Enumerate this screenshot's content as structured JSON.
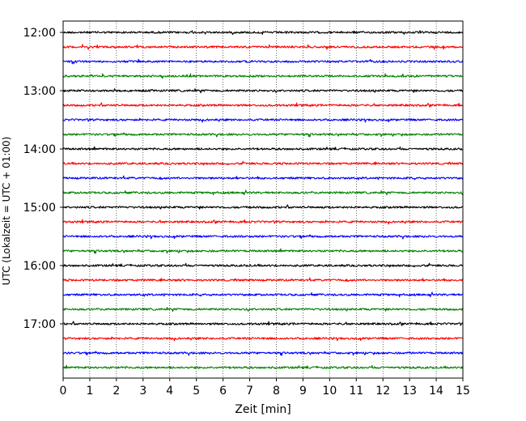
{
  "chart_data": {
    "type": "line",
    "title": "",
    "xlabel": "Zeit  [min]",
    "ylabel": "UTC (Lokalzeit = UTC + 01:00)",
    "xlim": [
      0,
      15
    ],
    "x_ticks": [
      "0",
      "1",
      "2",
      "3",
      "4",
      "5",
      "6",
      "7",
      "8",
      "9",
      "10",
      "11",
      "12",
      "13",
      "14",
      "15"
    ],
    "y_tick_labels": [
      "12:00",
      "13:00",
      "14:00",
      "15:00",
      "16:00",
      "17:00"
    ],
    "grid": "vertical dotted lines at each minute",
    "trace_interval_minutes": 15,
    "trace_start": "12:00",
    "trace_count": 24,
    "trace_color_cycle": [
      "#000000",
      "#ff0000",
      "#0000ff",
      "#008000"
    ],
    "series": [
      {
        "start": "12:00",
        "color": "#000000"
      },
      {
        "start": "12:15",
        "color": "#ff0000"
      },
      {
        "start": "12:30",
        "color": "#0000ff"
      },
      {
        "start": "12:45",
        "color": "#008000"
      },
      {
        "start": "13:00",
        "color": "#000000"
      },
      {
        "start": "13:15",
        "color": "#ff0000"
      },
      {
        "start": "13:30",
        "color": "#0000ff"
      },
      {
        "start": "13:45",
        "color": "#008000"
      },
      {
        "start": "14:00",
        "color": "#000000"
      },
      {
        "start": "14:15",
        "color": "#ff0000"
      },
      {
        "start": "14:30",
        "color": "#0000ff"
      },
      {
        "start": "14:45",
        "color": "#008000"
      },
      {
        "start": "15:00",
        "color": "#000000"
      },
      {
        "start": "15:15",
        "color": "#ff0000"
      },
      {
        "start": "15:30",
        "color": "#0000ff"
      },
      {
        "start": "15:45",
        "color": "#008000"
      },
      {
        "start": "16:00",
        "color": "#000000"
      },
      {
        "start": "16:15",
        "color": "#ff0000"
      },
      {
        "start": "16:30",
        "color": "#0000ff"
      },
      {
        "start": "16:45",
        "color": "#008000"
      },
      {
        "start": "17:00",
        "color": "#000000"
      },
      {
        "start": "17:15",
        "color": "#ff0000"
      },
      {
        "start": "17:30",
        "color": "#0000ff"
      },
      {
        "start": "17:45",
        "color": "#008000"
      }
    ]
  }
}
